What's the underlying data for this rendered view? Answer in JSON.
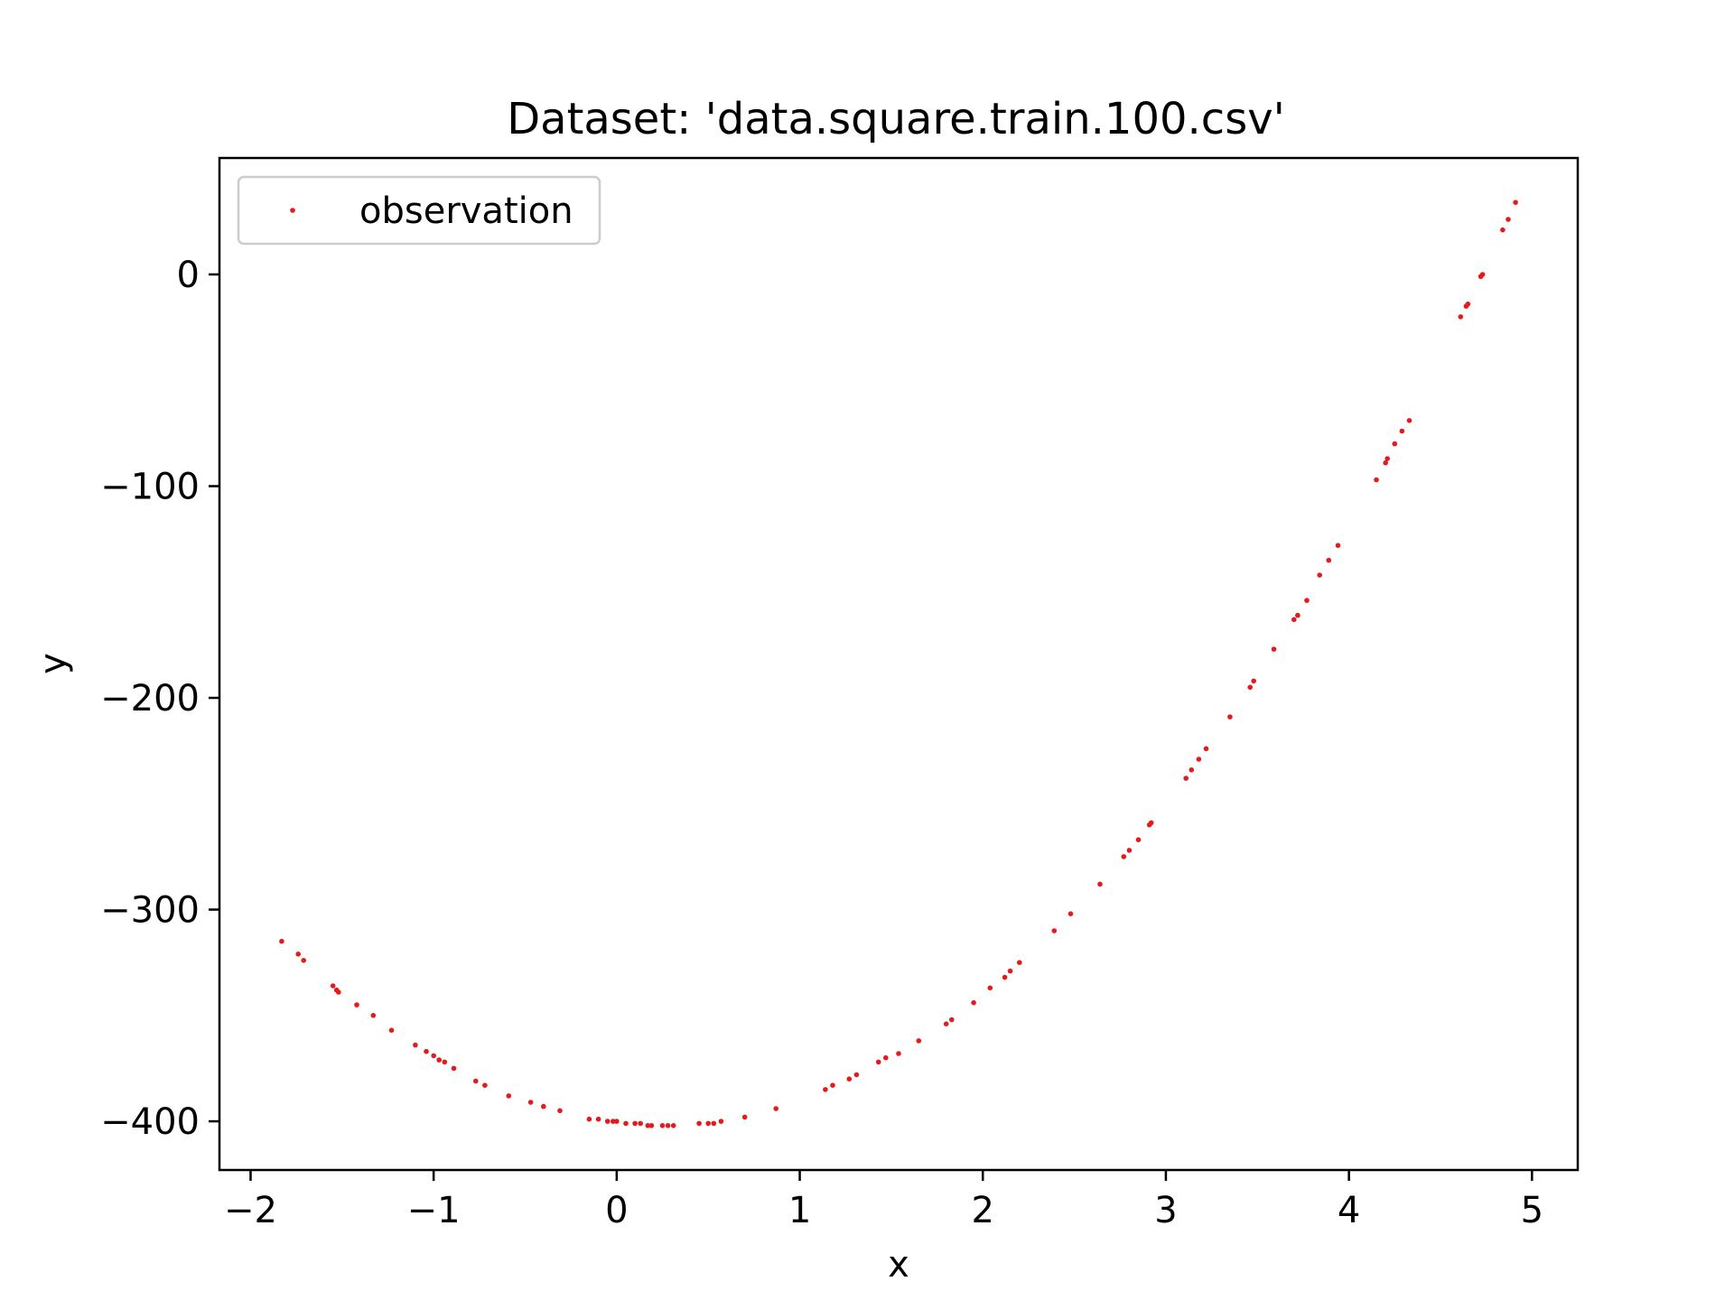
{
  "chart_data": {
    "type": "scatter",
    "title": "Dataset: 'data.square.train.100.csv'",
    "xlabel": "x",
    "ylabel": "y",
    "xlim": [
      -2.17,
      5.25
    ],
    "ylim": [
      -423,
      55
    ],
    "xticks": [
      -2,
      -1,
      0,
      1,
      2,
      3,
      4,
      5
    ],
    "yticks": [
      0,
      -100,
      -200,
      -300,
      -400
    ],
    "grid": false,
    "legend_position": "top-left",
    "point_color": "#e41a1c",
    "series": [
      {
        "name": "observation",
        "x": [
          -1.83,
          -1.74,
          -1.71,
          -1.55,
          -1.53,
          -1.52,
          -1.42,
          -1.33,
          -1.23,
          -1.1,
          -1.04,
          -1.0,
          -0.97,
          -0.94,
          -0.89,
          -0.77,
          -0.72,
          -0.59,
          -0.47,
          -0.4,
          -0.31,
          -0.15,
          -0.1,
          -0.05,
          -0.02,
          0.0,
          0.05,
          0.1,
          0.13,
          0.17,
          0.19,
          0.25,
          0.28,
          0.31,
          0.45,
          0.5,
          0.53,
          0.57,
          0.7,
          0.87,
          1.14,
          1.18,
          1.27,
          1.31,
          1.43,
          1.47,
          1.54,
          1.65,
          1.8,
          1.83,
          1.95,
          2.04,
          2.12,
          2.15,
          2.2,
          2.39,
          2.48,
          2.64,
          2.77,
          2.8,
          2.85,
          2.91,
          2.92,
          3.11,
          3.14,
          3.18,
          3.22,
          3.35,
          3.46,
          3.48,
          3.59,
          3.7,
          3.72,
          3.77,
          3.84,
          3.89,
          3.94,
          4.15,
          4.2,
          4.21,
          4.25,
          4.29,
          4.33,
          4.61,
          4.64,
          4.65,
          4.72,
          4.73,
          4.84,
          4.87,
          4.91
        ],
        "y": [
          -315,
          -321,
          -324,
          -336,
          -338,
          -339,
          -345,
          -350,
          -357,
          -364,
          -367,
          -369,
          -371,
          -372,
          -375,
          -381,
          -383,
          -388,
          -391,
          -393,
          -395,
          -399,
          -399,
          -400,
          -400,
          -400,
          -401,
          -401,
          -401,
          -402,
          -402,
          -402,
          -402,
          -402,
          -401,
          -401,
          -401,
          -400,
          -398,
          -394,
          -385,
          -383,
          -380,
          -378,
          -372,
          -370,
          -368,
          -362,
          -354,
          -352,
          -344,
          -337,
          -332,
          -329,
          -325,
          -310,
          -302,
          -288,
          -275,
          -272,
          -267,
          -260,
          -259,
          -238,
          -234,
          -229,
          -224,
          -209,
          -195,
          -192,
          -177,
          -163,
          -161,
          -154,
          -142,
          -135,
          -128,
          -97,
          -89,
          -87,
          -80,
          -74,
          -69,
          -20,
          -15,
          -14,
          -1,
          0,
          21,
          26,
          34
        ]
      }
    ]
  }
}
